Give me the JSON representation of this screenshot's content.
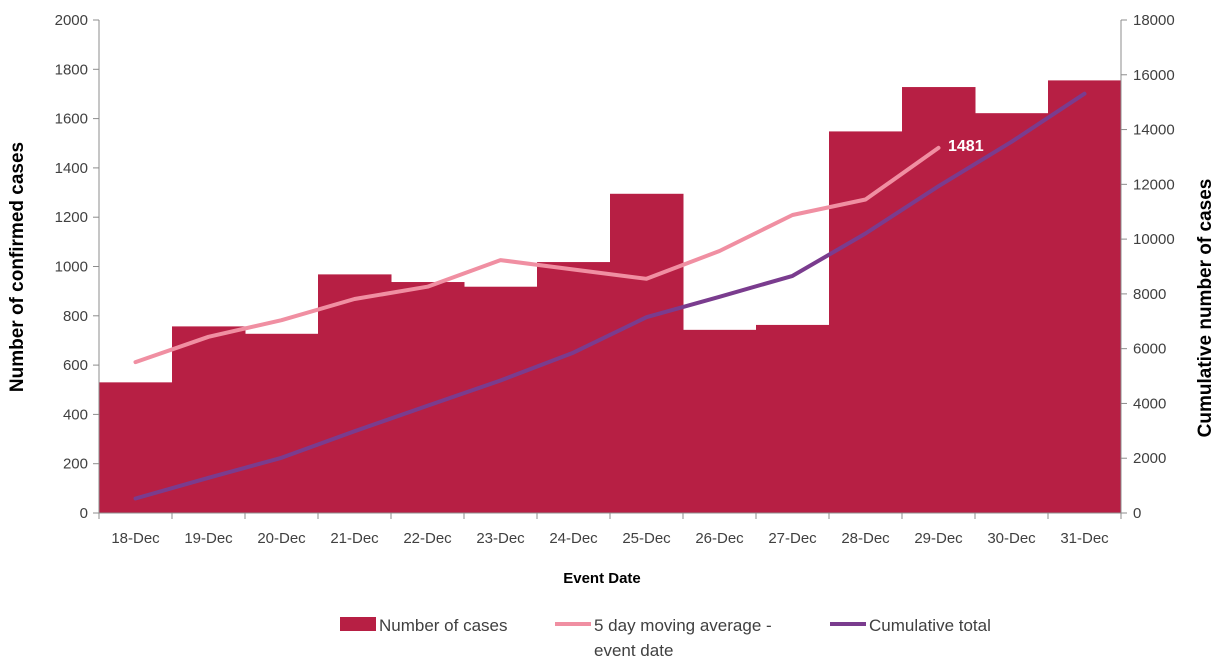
{
  "chart_data": {
    "type": "bar",
    "title": "",
    "xlabel": "Event Date",
    "ylabel": "Number of confirmed cases",
    "y2label": "Cumulative number of cases",
    "ylim": [
      0,
      2000
    ],
    "y2lim": [
      0,
      18000
    ],
    "yticks": [
      "0",
      "200",
      "400",
      "600",
      "800",
      "1000",
      "1200",
      "1400",
      "1600",
      "1800",
      "2000"
    ],
    "y2ticks": [
      "0",
      "2000",
      "4000",
      "6000",
      "8000",
      "10000",
      "12000",
      "14000",
      "16000",
      "18000"
    ],
    "categories": [
      "18-Dec",
      "19-Dec",
      "20-Dec",
      "21-Dec",
      "22-Dec",
      "23-Dec",
      "24-Dec",
      "25-Dec",
      "26-Dec",
      "27-Dec",
      "28-Dec",
      "29-Dec",
      "30-Dec",
      "31-Dec"
    ],
    "series": [
      {
        "name": "Number of cases",
        "type": "bar",
        "axis": "left",
        "color": "#B71F44",
        "values": [
          530,
          757,
          727,
          968,
          937,
          918,
          1018,
          1295,
          743,
          763,
          1548,
          1728,
          1622,
          1755
        ]
      },
      {
        "name": "5 day moving average - event date",
        "type": "line",
        "axis": "left",
        "color": "#F08FA2",
        "values": [
          612,
          715,
          782,
          868,
          918,
          1026,
          988,
          950,
          1063,
          1209,
          1272,
          1481,
          null,
          null
        ]
      },
      {
        "name": "Cumulative total",
        "type": "line",
        "axis": "right",
        "color": "#7A3C8E",
        "values": [
          530,
          1287,
          2014,
          2982,
          3919,
          4837,
          5855,
          7150,
          7893,
          8656,
          10204,
          11932,
          13554,
          15309
        ]
      }
    ],
    "annotations": [
      {
        "text": "1481",
        "category": "29-Dec",
        "series": "5 day moving average - event date"
      }
    ],
    "legend": {
      "position": "bottom",
      "items": [
        "Number of cases",
        "5 day moving average -",
        "event date",
        "Cumulative total"
      ]
    },
    "grid": false
  }
}
